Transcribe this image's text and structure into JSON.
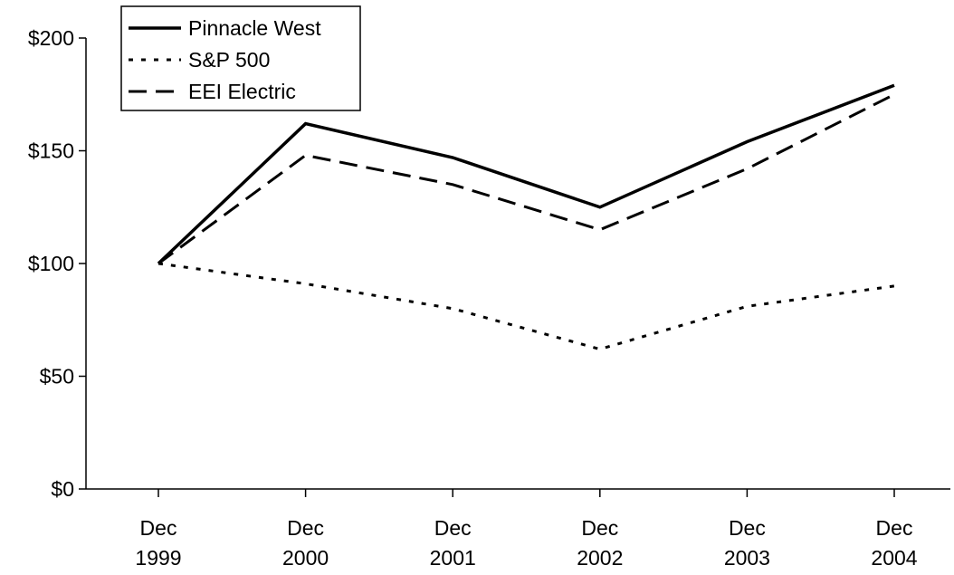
{
  "chart_data": {
    "type": "line",
    "title": "",
    "xlabel": "",
    "ylabel": "",
    "categories": [
      [
        "Dec",
        "1999"
      ],
      [
        "Dec",
        "2000"
      ],
      [
        "Dec",
        "2001"
      ],
      [
        "Dec",
        "2002"
      ],
      [
        "Dec",
        "2003"
      ],
      [
        "Dec",
        "2004"
      ]
    ],
    "ylim": [
      0,
      200
    ],
    "yticks": [
      0,
      50,
      100,
      150,
      200
    ],
    "ytick_labels": [
      "$0",
      "$50",
      "$100",
      "$150",
      "$200"
    ],
    "grid": false,
    "legend_position": "top-left",
    "series": [
      {
        "name": "Pinnacle West",
        "style": "solid",
        "color": "#000000",
        "values": [
          100,
          162,
          147,
          125,
          154,
          179
        ]
      },
      {
        "name": "S&P 500",
        "style": "dotted",
        "color": "#000000",
        "values": [
          100,
          91,
          80,
          62,
          81,
          90
        ]
      },
      {
        "name": "EEI Electric",
        "style": "dashed",
        "color": "#000000",
        "values": [
          100,
          148,
          135,
          115,
          142,
          175
        ]
      }
    ]
  }
}
